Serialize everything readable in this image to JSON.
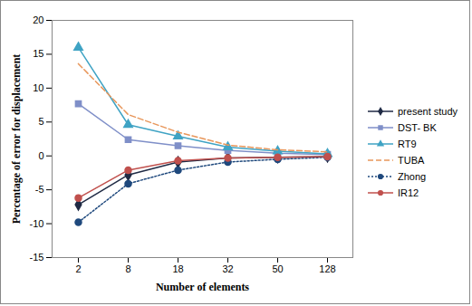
{
  "chart_data": {
    "type": "line",
    "x_label": "Number of elements",
    "y_label": "Percentage of error for displacement",
    "categories": [
      "2",
      "8",
      "18",
      "32",
      "50",
      "128"
    ],
    "ylim": [
      -15,
      20
    ],
    "yticks": [
      -15,
      -10,
      -5,
      0,
      5,
      10,
      15,
      20
    ],
    "grid": false,
    "legend": "right",
    "series": [
      {
        "name": "present study",
        "color": "#1f2a44",
        "marker": "diamond",
        "line_style": "solid",
        "values": [
          -7.2,
          -2.8,
          -0.9,
          -0.3,
          -0.2,
          -0.1
        ]
      },
      {
        "name": "DST- BK",
        "color": "#7f8fc8",
        "marker": "square",
        "line_style": "solid",
        "values": [
          7.7,
          2.4,
          1.5,
          0.8,
          0.4,
          0.2
        ]
      },
      {
        "name": "RT9",
        "color": "#3fa3c4",
        "marker": "triangle",
        "line_style": "solid",
        "values": [
          16,
          4.6,
          2.9,
          1.3,
          0.7,
          0.3
        ]
      },
      {
        "name": "TUBA",
        "color": "#e8965a",
        "marker": "none",
        "line_style": "dashed",
        "values": [
          13.6,
          6.1,
          3.5,
          1.6,
          0.9,
          0.6
        ]
      },
      {
        "name": "Zhong",
        "color": "#1f497d",
        "marker": "circle",
        "line_style": "dotted",
        "values": [
          -9.8,
          -4.1,
          -2.1,
          -0.9,
          -0.5,
          -0.2
        ]
      },
      {
        "name": "IR12",
        "color": "#c0504d",
        "marker": "circle",
        "line_style": "solid",
        "values": [
          -6.2,
          -2.1,
          -0.7,
          -0.3,
          -0.2,
          -0.1
        ]
      }
    ]
  }
}
